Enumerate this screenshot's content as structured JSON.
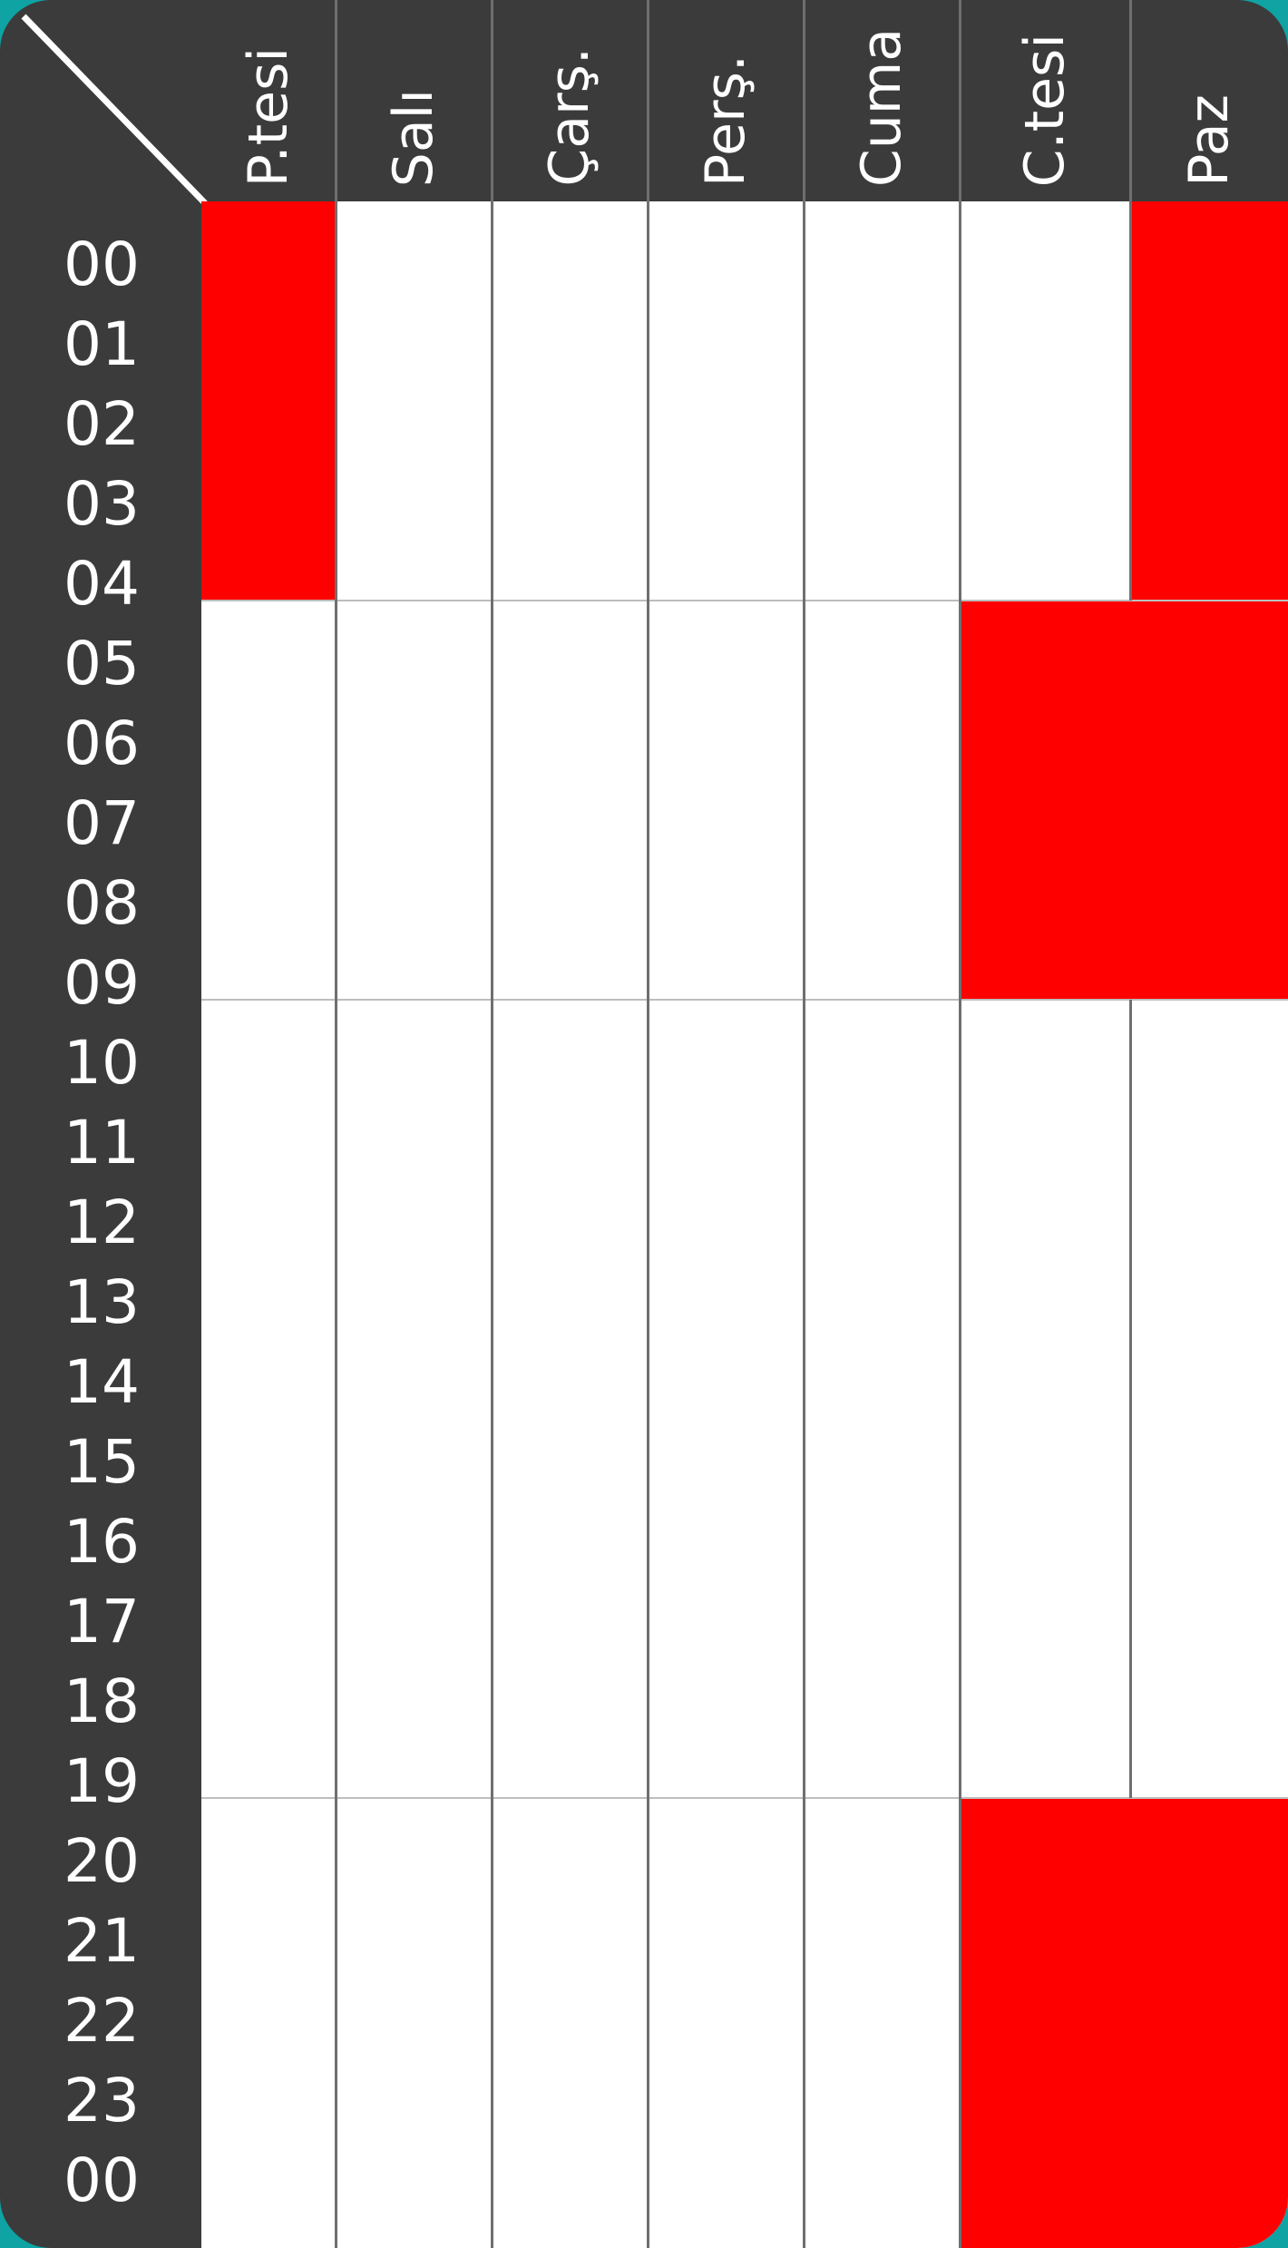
{
  "days": [
    "P.tesi",
    "Salı",
    "Çarş.",
    "Perş.",
    "Cuma",
    "C.tesi",
    "Paz"
  ],
  "hours": [
    "00",
    "01",
    "02",
    "03",
    "04",
    "05",
    "06",
    "07",
    "08",
    "09",
    "10",
    "11",
    "12",
    "13",
    "14",
    "15",
    "16",
    "17",
    "18",
    "19",
    "20",
    "21",
    "22",
    "23",
    "00"
  ],
  "colors": {
    "panel": "#3b3b3b",
    "cell": "#ffffff",
    "selected": "#ff0000",
    "background": "#0fa3a3"
  },
  "selected_ranges": [
    {
      "day": "P.tesi",
      "from": "00",
      "to": "05"
    },
    {
      "day": "Paz",
      "from": "00",
      "to": "10"
    },
    {
      "day": "C.tesi",
      "from": "05",
      "to": "10"
    },
    {
      "day": "C.tesi",
      "from": "20",
      "to": "00"
    },
    {
      "day": "Paz",
      "from": "20",
      "to": "00"
    }
  ]
}
